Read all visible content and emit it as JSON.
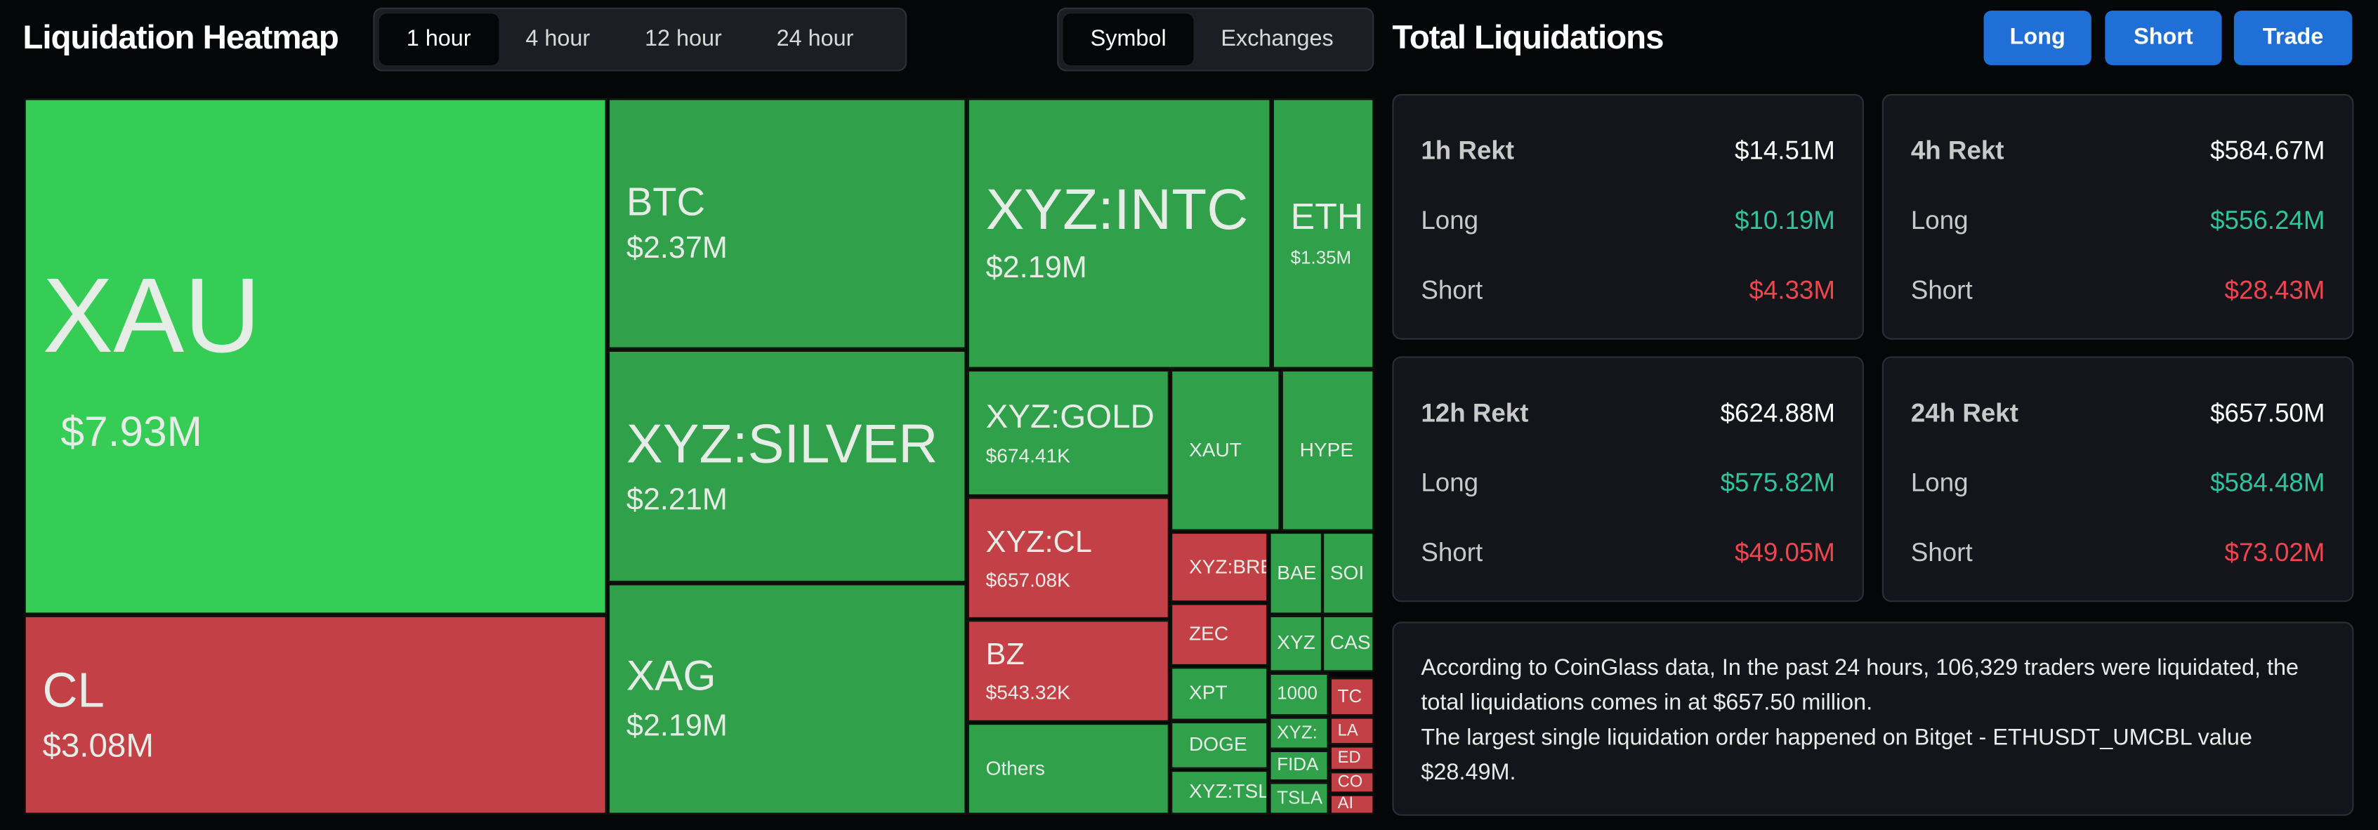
{
  "header": {
    "title": "Liquidation Heatmap",
    "time_tabs": [
      "1 hour",
      "4 hour",
      "12 hour",
      "24 hour"
    ],
    "view_tabs": [
      "Symbol",
      "Exchanges"
    ]
  },
  "treemap": {
    "tiles": [
      {
        "label": "XAU",
        "value": "$7.93M",
        "color": "#35cd56"
      },
      {
        "label": "CL",
        "value": "$3.08M",
        "color": "#c44047"
      },
      {
        "label": "BTC",
        "value": "$2.37M",
        "color": "#30a04b"
      },
      {
        "label": "XYZ:SILVER",
        "value": "$2.21M",
        "color": "#30a04b"
      },
      {
        "label": "XAG",
        "value": "$2.19M",
        "color": "#30a04b"
      },
      {
        "label": "XYZ:INTC",
        "value": "$2.19M",
        "color": "#30a04b"
      },
      {
        "label": "ETH",
        "value": "$1.35M",
        "color": "#30a04b"
      },
      {
        "label": "XYZ:GOLD",
        "value": "$674.41K",
        "color": "#30a04b"
      },
      {
        "label": "XAUT",
        "color": "#30a04b"
      },
      {
        "label": "HYPE",
        "color": "#30a04b"
      },
      {
        "label": "XYZ:CL",
        "value": "$657.08K",
        "color": "#c44047"
      },
      {
        "label": "BZ",
        "value": "$543.32K",
        "color": "#c44047"
      },
      {
        "label": "Others",
        "color": "#30a04b"
      },
      {
        "label": "XYZ:BRE",
        "color": "#c44047"
      },
      {
        "label": "ZEC",
        "color": "#c44047"
      },
      {
        "label": "XPT",
        "color": "#30a04b"
      },
      {
        "label": "DOGE",
        "color": "#30a04b"
      },
      {
        "label": "XYZ:TSL",
        "color": "#30a04b"
      },
      {
        "label": "BAE",
        "color": "#30a04b"
      },
      {
        "label": "SOI",
        "color": "#30a04b"
      },
      {
        "label": "XYZ",
        "color": "#30a04b"
      },
      {
        "label": "CAS",
        "color": "#30a04b"
      },
      {
        "label": "1000",
        "color": "#30a04b"
      },
      {
        "label": "XYZ:",
        "color": "#30a04b"
      },
      {
        "label": "FIDA",
        "color": "#30a04b"
      },
      {
        "label": "TSLA",
        "color": "#30a04b"
      },
      {
        "label": "TC",
        "color": "#c44047"
      },
      {
        "label": "LA",
        "color": "#c44047"
      },
      {
        "label": "ED",
        "color": "#c44047"
      },
      {
        "label": "CO",
        "color": "#c44047"
      },
      {
        "label": "AI",
        "color": "#c44047"
      }
    ]
  },
  "panel": {
    "title": "Total Liquidations",
    "buttons": [
      "Long",
      "Short",
      "Trade"
    ],
    "cards": [
      {
        "title": "1h Rekt",
        "total": "$14.51M",
        "rows": [
          {
            "label": "Long",
            "value": "$10.19M"
          },
          {
            "label": "Short",
            "value": "$4.33M"
          }
        ]
      },
      {
        "title": "4h Rekt",
        "total": "$584.67M",
        "rows": [
          {
            "label": "Long",
            "value": "$556.24M"
          },
          {
            "label": "Short",
            "value": "$28.43M"
          }
        ]
      },
      {
        "title": "12h Rekt",
        "total": "$624.88M",
        "rows": [
          {
            "label": "Long",
            "value": "$575.82M"
          },
          {
            "label": "Short",
            "value": "$49.05M"
          }
        ]
      },
      {
        "title": "24h Rekt",
        "total": "$657.50M",
        "rows": [
          {
            "label": "Long",
            "value": "$584.48M"
          },
          {
            "label": "Short",
            "value": "$73.02M"
          }
        ]
      }
    ],
    "info": [
      "According to CoinGlass data, In the past 24 hours, 106,329 traders were liquidated, the total liquidations comes in at $657.50 million.",
      "The largest single liquidation order happened on Bitget - ETHUSDT_UMCBL value $28.49M."
    ]
  }
}
